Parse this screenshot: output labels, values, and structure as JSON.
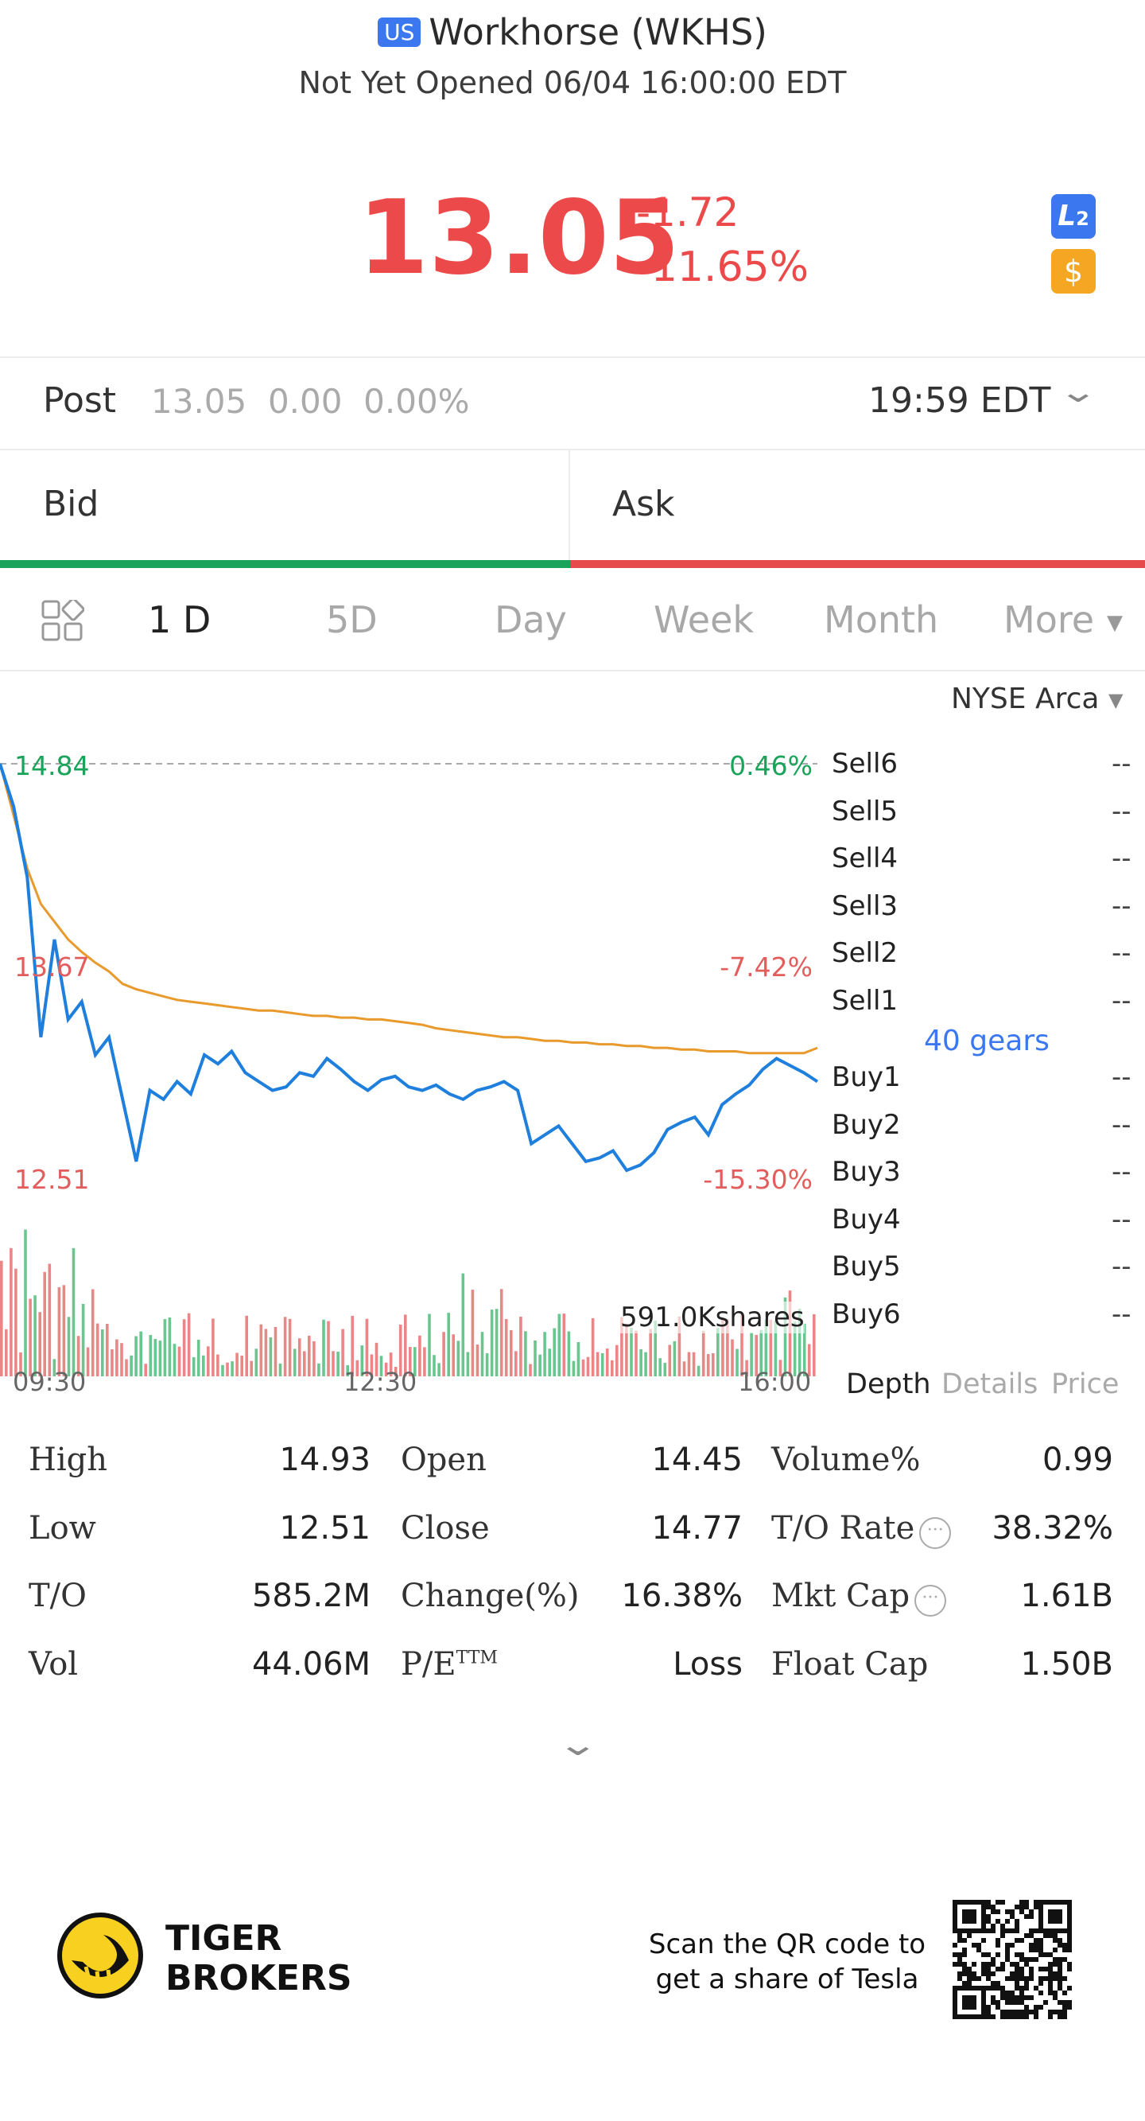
{
  "header": {
    "market_badge": "US",
    "title": "Workhorse (WKHS)",
    "status": "Not Yet Opened 06/04 16:00:00 EDT"
  },
  "quote": {
    "price": "13.05",
    "change": "-1.72",
    "change_pct": "-11.65%",
    "l2_badge": "L",
    "l2_sub": "2",
    "dollar_badge": "$",
    "color_down": "#ec4a4a"
  },
  "post": {
    "label": "Post",
    "values": "13.05  0.00  0.00%",
    "time": "19:59 EDT"
  },
  "orderbook": {
    "bid_label": "Bid",
    "ask_label": "Ask"
  },
  "tabs": {
    "items": [
      "1 D",
      "5D",
      "Day",
      "Week",
      "Month",
      "More"
    ],
    "active": "1 D"
  },
  "exchange": "NYSE Arca",
  "chart_data": {
    "type": "line",
    "title": "",
    "x_ticks": [
      "09:30",
      "12:30",
      "16:00"
    ],
    "price_levels": {
      "high": "14.84",
      "mid": "13.67",
      "low": "12.51"
    },
    "pct_levels": {
      "high": "0.46%",
      "mid": "-7.42%",
      "low": "-15.30%"
    },
    "ylim": [
      12.51,
      14.84
    ],
    "series": [],
    "price_line": [
      14.84,
      14.6,
      14.2,
      13.3,
      13.85,
      13.4,
      13.5,
      13.2,
      13.3,
      12.95,
      12.6,
      13.0,
      12.95,
      13.05,
      12.98,
      13.2,
      13.15,
      13.22,
      13.1,
      13.05,
      13.0,
      13.02,
      13.1,
      13.08,
      13.18,
      13.12,
      13.05,
      13.0,
      13.06,
      13.08,
      13.02,
      13.0,
      13.03,
      12.98,
      12.95,
      13.0,
      13.02,
      13.05,
      13.0,
      12.7,
      12.75,
      12.8,
      12.7,
      12.6,
      12.62,
      12.66,
      12.55,
      12.58,
      12.65,
      12.78,
      12.82,
      12.85,
      12.75,
      12.92,
      12.98,
      13.03,
      13.12,
      13.18,
      13.14,
      13.1,
      13.05
    ],
    "avg_line": [
      14.84,
      14.55,
      14.25,
      14.05,
      13.95,
      13.85,
      13.78,
      13.72,
      13.67,
      13.6,
      13.57,
      13.55,
      13.53,
      13.51,
      13.5,
      13.49,
      13.48,
      13.47,
      13.46,
      13.45,
      13.45,
      13.44,
      13.43,
      13.42,
      13.42,
      13.41,
      13.41,
      13.4,
      13.4,
      13.39,
      13.38,
      13.37,
      13.35,
      13.34,
      13.33,
      13.32,
      13.31,
      13.3,
      13.3,
      13.29,
      13.28,
      13.28,
      13.27,
      13.27,
      13.26,
      13.26,
      13.25,
      13.25,
      13.24,
      13.24,
      13.23,
      13.23,
      13.22,
      13.22,
      13.22,
      13.21,
      13.21,
      13.21,
      13.21,
      13.21,
      13.24
    ],
    "volume_label": "591.0Kshares",
    "colors": {
      "price": "#1f7fdc",
      "avg": "#e89a2c",
      "up": "#38b26a",
      "down": "#e35d5d"
    }
  },
  "depth": {
    "sell": [
      {
        "label": "Sell6",
        "value": "--"
      },
      {
        "label": "Sell5",
        "value": "--"
      },
      {
        "label": "Sell4",
        "value": "--"
      },
      {
        "label": "Sell3",
        "value": "--"
      },
      {
        "label": "Sell2",
        "value": "--"
      },
      {
        "label": "Sell1",
        "value": "--"
      }
    ],
    "gears": "40 gears",
    "buy": [
      {
        "label": "Buy1",
        "value": "--"
      },
      {
        "label": "Buy2",
        "value": "--"
      },
      {
        "label": "Buy3",
        "value": "--"
      },
      {
        "label": "Buy4",
        "value": "--"
      },
      {
        "label": "Buy5",
        "value": "--"
      },
      {
        "label": "Buy6",
        "value": "--"
      }
    ],
    "tabs": [
      "Depth",
      "Details",
      "Price"
    ],
    "active_tab": "Depth"
  },
  "stats": [
    [
      {
        "label": "High",
        "value": "14.93"
      },
      {
        "label": "Open",
        "value": "14.45"
      },
      {
        "label": "Volume%",
        "value": "0.99"
      }
    ],
    [
      {
        "label": "Low",
        "value": "12.51"
      },
      {
        "label": "Close",
        "value": "14.77"
      },
      {
        "label": "T/O Rate",
        "value": "38.32%",
        "info": true
      }
    ],
    [
      {
        "label": "T/O",
        "value": "585.2M"
      },
      {
        "label": "Change(%)",
        "value": "16.38%"
      },
      {
        "label": "Mkt Cap",
        "value": "1.61B",
        "info": true
      }
    ],
    [
      {
        "label": "Vol",
        "value": "44.06M"
      },
      {
        "label": "P/E",
        "sup": "TTM",
        "value": "Loss"
      },
      {
        "label": "Float Cap",
        "value": "1.50B"
      }
    ]
  ],
  "footer": {
    "brand_line1": "TIGER",
    "brand_line2": "BROKERS",
    "qr_text_line1": "Scan the QR code to",
    "qr_text_line2": "get a share of Tesla"
  }
}
